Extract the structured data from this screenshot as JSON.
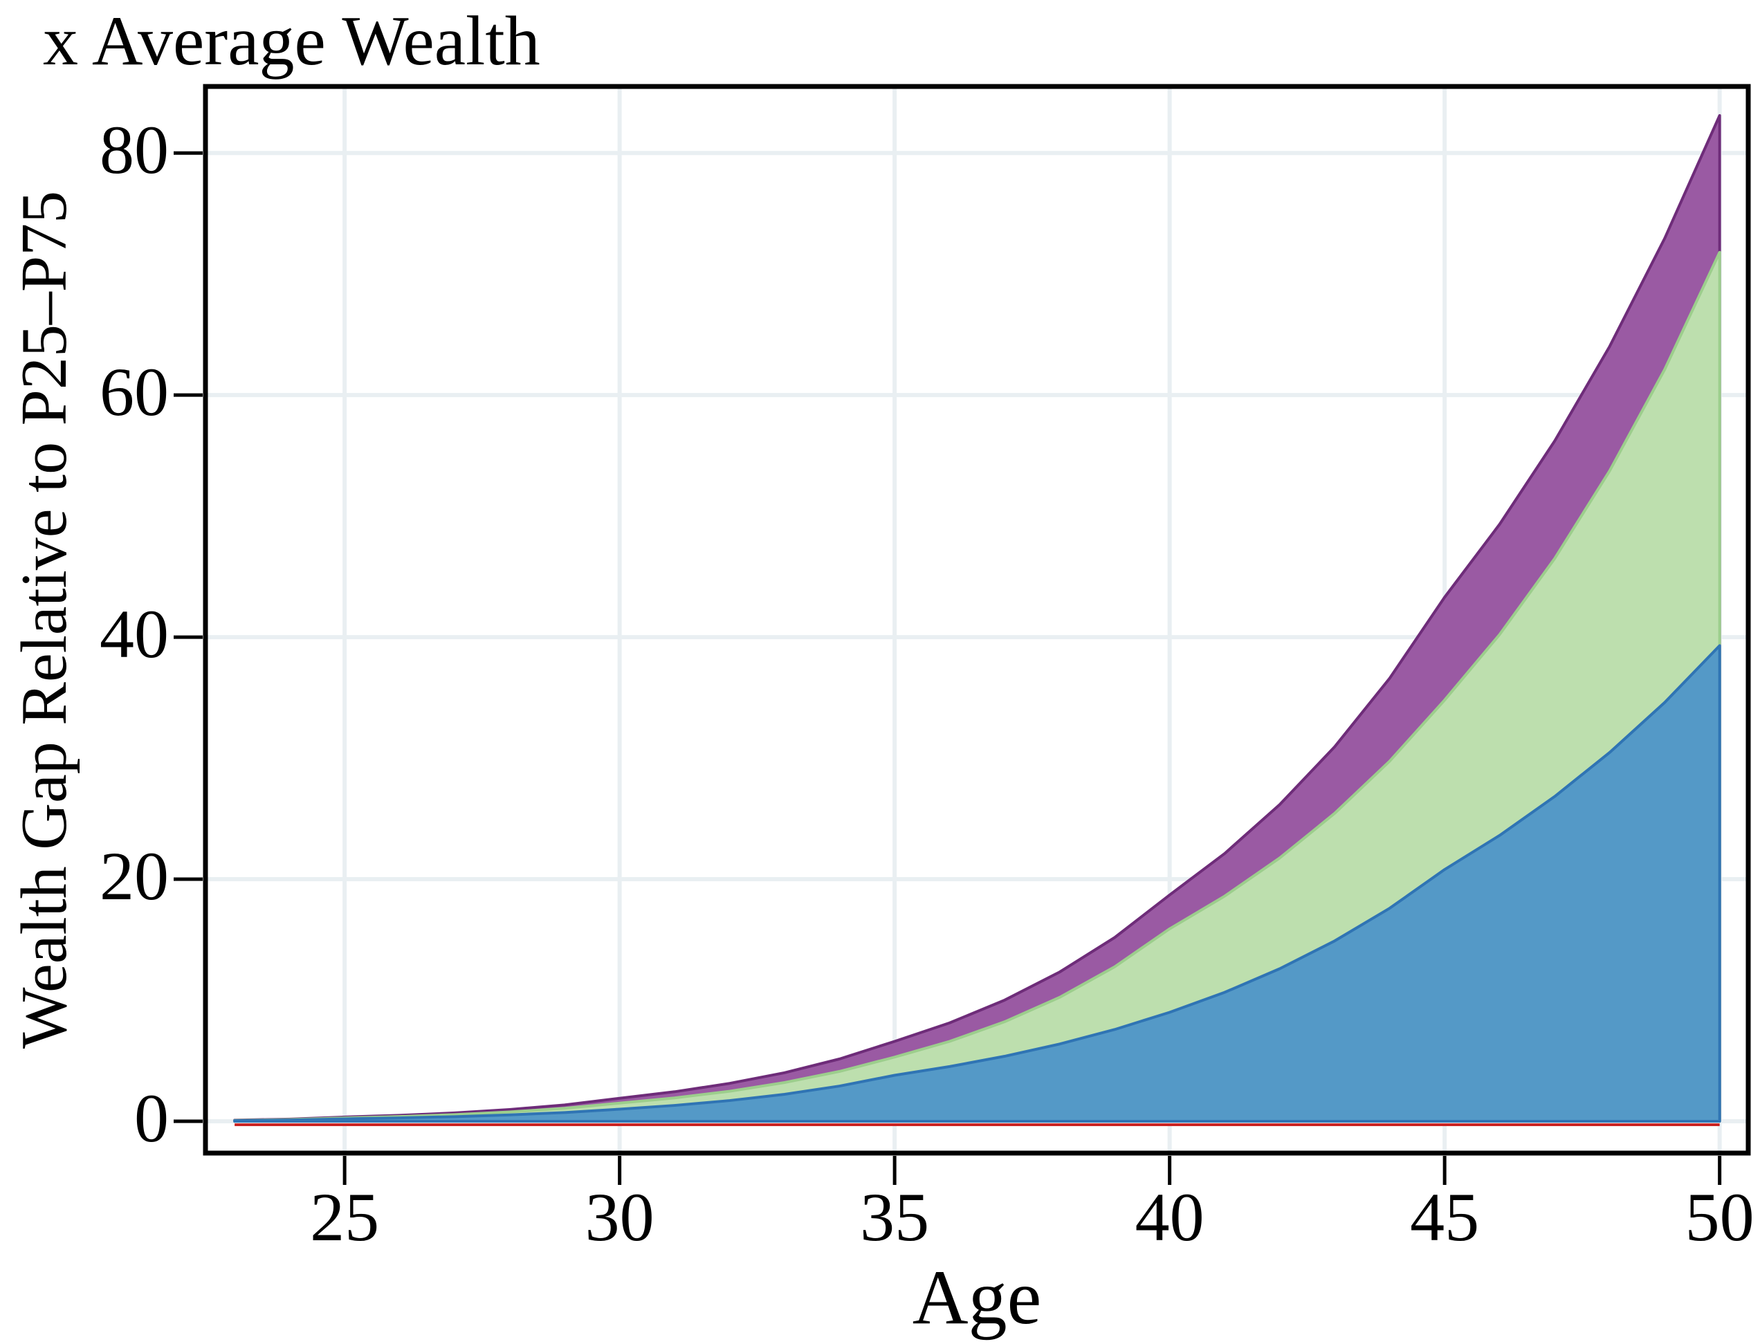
{
  "figure": {
    "title": "x Average Wealth",
    "x_axis_label": "Age",
    "y_axis_label": "Wealth Gap Relative to P25–P75"
  },
  "chart_data": {
    "type": "area",
    "stacking": "values are cumulative stack tops (overplotted areas)",
    "title": "x Average Wealth",
    "xlabel": "Age",
    "ylabel": "Wealth Gap Relative to P25–P75",
    "xlim": [
      22.47,
      50.52
    ],
    "ylim": [
      -2.63,
      85.5
    ],
    "xticks": [
      25,
      30,
      35,
      40,
      45,
      50
    ],
    "yticks": [
      0,
      20,
      40,
      60,
      80
    ],
    "grid": true,
    "grid_color": "#E9EFF2",
    "legend": "none",
    "x": [
      23,
      24,
      25,
      26,
      27,
      28,
      29,
      30,
      31,
      32,
      33,
      34,
      35,
      36,
      37,
      38,
      39,
      40,
      41,
      42,
      43,
      44,
      45,
      46,
      47,
      48,
      49,
      50
    ],
    "series": [
      {
        "name": "bottom-blue-area",
        "fill": "#5499C7",
        "stroke": "#2F74B4",
        "cumulative_values": [
          0.05,
          0.1,
          0.2,
          0.28,
          0.38,
          0.53,
          0.72,
          1.0,
          1.31,
          1.71,
          2.23,
          2.91,
          3.8,
          4.52,
          5.37,
          6.38,
          7.58,
          9.0,
          10.65,
          12.6,
          14.9,
          17.6,
          20.8,
          23.62,
          26.83,
          30.47,
          34.6,
          39.3
        ]
      },
      {
        "name": "middle-green-area",
        "fill": "#BDDFAE",
        "stroke": "#9CCE8C",
        "cumulative_values": [
          0.07,
          0.14,
          0.28,
          0.39,
          0.55,
          0.77,
          1.07,
          1.5,
          1.93,
          2.48,
          3.2,
          4.12,
          5.3,
          6.6,
          8.22,
          10.24,
          12.76,
          15.9,
          18.6,
          21.75,
          25.44,
          29.75,
          34.8,
          40.22,
          46.49,
          53.74,
          62.11,
          71.8
        ]
      },
      {
        "name": "top-purple-area",
        "fill": "#9A5AA3",
        "stroke": "#6E2C79",
        "cumulative_values": [
          0.09,
          0.18,
          0.35,
          0.49,
          0.69,
          0.97,
          1.35,
          1.9,
          2.44,
          3.13,
          4.01,
          5.15,
          6.6,
          8.13,
          10.01,
          12.33,
          15.18,
          18.7,
          22.12,
          26.16,
          30.94,
          36.6,
          43.3,
          49.33,
          56.2,
          64.02,
          72.94,
          83.1
        ]
      }
    ],
    "baseline": {
      "name": "zero-reference-line",
      "value": 0,
      "color": "#CB2423"
    }
  }
}
